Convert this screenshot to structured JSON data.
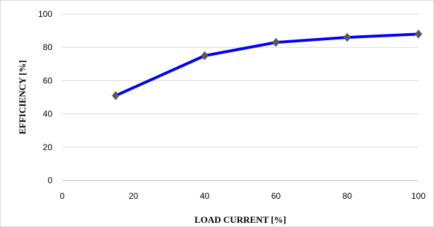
{
  "chart_data": {
    "type": "line",
    "title": "",
    "xlabel": "LOAD CURRENT [%]",
    "ylabel": "EFFICIENCY [%]",
    "xlim": [
      0,
      100
    ],
    "ylim": [
      0,
      100
    ],
    "x_ticks": [
      "0",
      "20",
      "40",
      "60",
      "80",
      "100"
    ],
    "y_ticks": [
      "0",
      "20",
      "40",
      "60",
      "80",
      "100"
    ],
    "grid": "horizontal",
    "legend": "none",
    "series": [
      {
        "x": [
          15,
          40,
          60,
          80,
          100
        ],
        "values": [
          51,
          75,
          83,
          86,
          88
        ],
        "line_color": "#0000ff",
        "marker": "diamond",
        "marker_color": "#595959"
      }
    ]
  }
}
